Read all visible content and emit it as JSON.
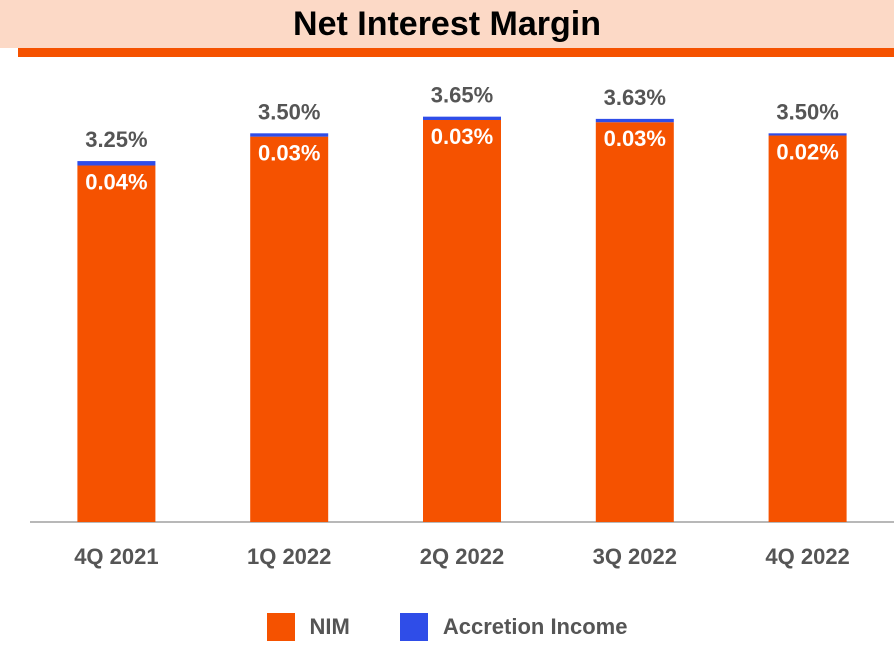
{
  "colors": {
    "nim": "#f55200",
    "accretion": "#2f4de8",
    "header_band": "#fcd9c6",
    "axis": "#a0a0a0",
    "label_dark": "#555555",
    "label_light": "#ffffff"
  },
  "chart_data": {
    "type": "bar",
    "stacked": true,
    "title": "Net Interest Margin",
    "xlabel": "",
    "ylabel": "",
    "categories": [
      "4Q 2021",
      "1Q 2022",
      "2Q 2022",
      "3Q 2022",
      "4Q 2022"
    ],
    "series": [
      {
        "name": "NIM",
        "values": [
          3.21,
          3.47,
          3.62,
          3.6,
          3.48
        ]
      },
      {
        "name": "Accretion Income",
        "values": [
          0.04,
          0.03,
          0.03,
          0.03,
          0.02
        ],
        "labels": [
          "0.04%",
          "0.03%",
          "0.03%",
          "0.03%",
          "0.02%"
        ]
      }
    ],
    "totals": [
      3.25,
      3.5,
      3.65,
      3.63,
      3.5
    ],
    "total_labels": [
      "3.25%",
      "3.50%",
      "3.65%",
      "3.63%",
      "3.50%"
    ],
    "ylim": [
      0,
      3.8
    ],
    "grid": false,
    "legend": "bottom"
  }
}
